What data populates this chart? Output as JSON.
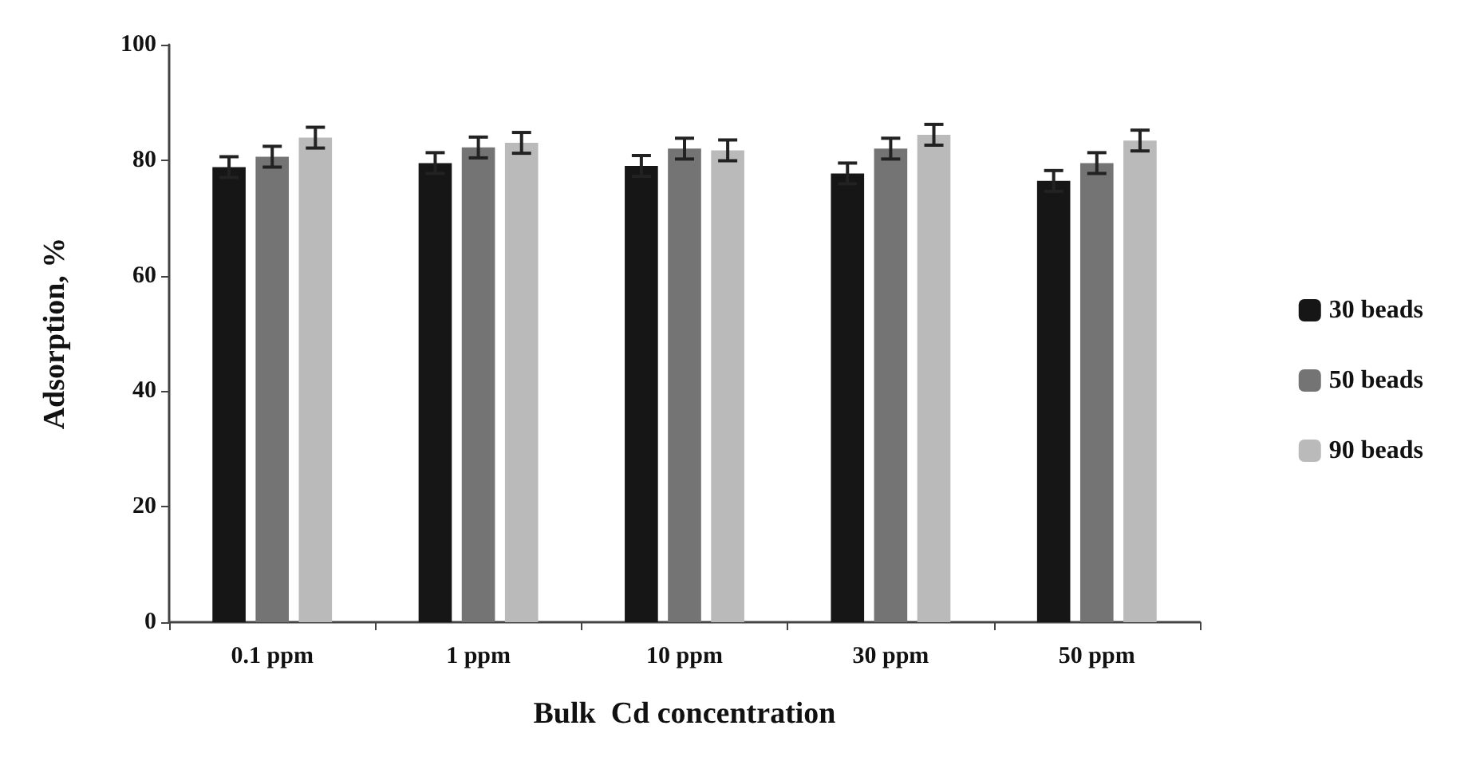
{
  "chart_data": {
    "type": "bar",
    "xlabel": "Bulk  Cd concentration",
    "ylabel": "Adsorption, %",
    "categories": [
      "0.1 ppm",
      "1 ppm",
      "10 ppm",
      "30 ppm",
      "50 ppm"
    ],
    "series": [
      {
        "name": "30 beads",
        "color": "#161616",
        "values": [
          78.8,
          79.5,
          79.0,
          77.7,
          76.4
        ],
        "errors": [
          1.8,
          1.8,
          1.8,
          1.8,
          1.8
        ]
      },
      {
        "name": "50 beads",
        "color": "#747474",
        "values": [
          80.6,
          82.2,
          82.0,
          82.0,
          79.5
        ],
        "errors": [
          1.8,
          1.8,
          1.8,
          1.8,
          1.8
        ]
      },
      {
        "name": "90 beads",
        "color": "#bababa",
        "values": [
          83.9,
          83.0,
          81.7,
          84.4,
          83.4
        ],
        "errors": [
          1.8,
          1.8,
          1.8,
          1.8,
          1.8
        ]
      }
    ],
    "ylim": [
      0,
      100
    ],
    "yticks": [
      0,
      20,
      40,
      60,
      80,
      100
    ],
    "grid": false,
    "legend": "right"
  }
}
